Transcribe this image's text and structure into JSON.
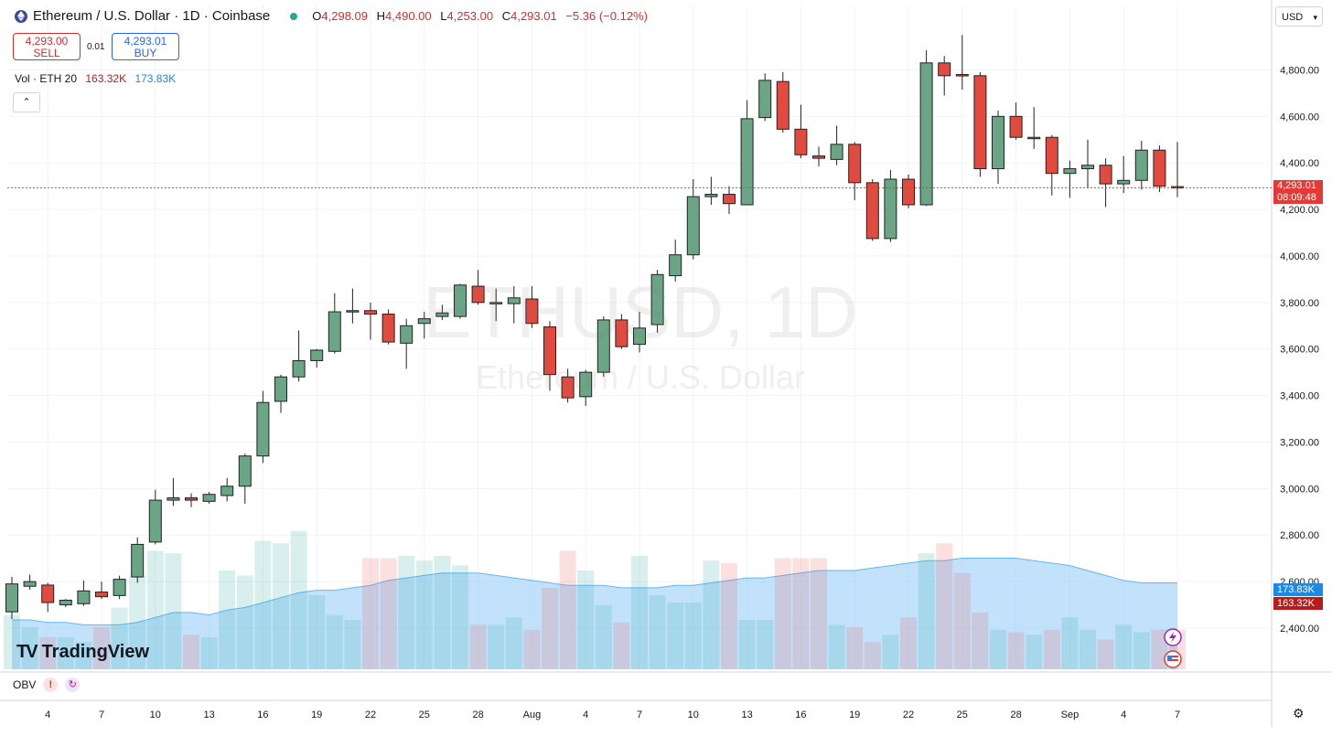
{
  "header": {
    "symbol_title": "Ethereum / U.S. Dollar · 1D · Coinbase",
    "open_label": "O",
    "open": "4,298.09",
    "high_label": "H",
    "high": "4,490.00",
    "low_label": "L",
    "low": "4,253.00",
    "close_label": "C",
    "close": "4,293.01",
    "change": "−5.36 (−0.12%)"
  },
  "trade": {
    "sell_price": "4,293.00",
    "sell_label": "SELL",
    "buy_price": "4,293.01",
    "buy_label": "BUY",
    "spread": "0.01"
  },
  "volume_legend": {
    "label": "Vol · ETH 20",
    "volume": "163.32K",
    "ma": "173.83K"
  },
  "watermark": {
    "symbol": "ETHUSD, 1D",
    "name": "Ethereum / U.S. Dollar"
  },
  "currency": "USD",
  "price_badge": {
    "price": "4,293.01",
    "countdown": "08:09:48"
  },
  "volume_badges": {
    "ma": "173.83K",
    "volume": "163.32K"
  },
  "obv_label": "OBV",
  "brand": "TradingView",
  "colors": {
    "up": "#26a69a",
    "up_body": "#6aa585",
    "down": "#e04a3f",
    "ma_fill": "#90caf9",
    "price_line": "#e53935"
  },
  "chart_data": {
    "type": "candlestick",
    "x_ticks": [
      "4",
      "7",
      "10",
      "13",
      "16",
      "19",
      "22",
      "25",
      "28",
      "Aug",
      "4",
      "7",
      "10",
      "13",
      "16",
      "19",
      "22",
      "25",
      "28",
      "Sep",
      "4",
      "7"
    ],
    "y_ticks": [
      "2,400.00",
      "2,600.00",
      "2,800.00",
      "3,000.00",
      "3,200.00",
      "3,400.00",
      "3,600.00",
      "3,800.00",
      "4,000.00",
      "4,200.00",
      "4,400.00",
      "4,600.00",
      "4,800.00"
    ],
    "ylim": [
      2170,
      4990
    ],
    "current_price": 4293.01,
    "candles": [
      {
        "o": 2470,
        "h": 2620,
        "l": 2440,
        "c": 2590
      },
      {
        "o": 2580,
        "h": 2630,
        "l": 2565,
        "c": 2600
      },
      {
        "o": 2585,
        "h": 2595,
        "l": 2470,
        "c": 2510
      },
      {
        "o": 2500,
        "h": 2525,
        "l": 2490,
        "c": 2520
      },
      {
        "o": 2505,
        "h": 2605,
        "l": 2495,
        "c": 2560
      },
      {
        "o": 2555,
        "h": 2600,
        "l": 2525,
        "c": 2535
      },
      {
        "o": 2540,
        "h": 2625,
        "l": 2525,
        "c": 2610
      },
      {
        "o": 2620,
        "h": 2790,
        "l": 2595,
        "c": 2760
      },
      {
        "o": 2770,
        "h": 2995,
        "l": 2760,
        "c": 2950
      },
      {
        "o": 2950,
        "h": 3045,
        "l": 2925,
        "c": 2960
      },
      {
        "o": 2960,
        "h": 2980,
        "l": 2920,
        "c": 2950
      },
      {
        "o": 2945,
        "h": 2985,
        "l": 2935,
        "c": 2975
      },
      {
        "o": 2970,
        "h": 3045,
        "l": 2945,
        "c": 3010
      },
      {
        "o": 3010,
        "h": 3150,
        "l": 2935,
        "c": 3140
      },
      {
        "o": 3140,
        "h": 3420,
        "l": 3110,
        "c": 3370
      },
      {
        "o": 3375,
        "h": 3490,
        "l": 3325,
        "c": 3480
      },
      {
        "o": 3480,
        "h": 3680,
        "l": 3460,
        "c": 3550
      },
      {
        "o": 3550,
        "h": 3600,
        "l": 3520,
        "c": 3595
      },
      {
        "o": 3590,
        "h": 3840,
        "l": 3580,
        "c": 3760
      },
      {
        "o": 3760,
        "h": 3860,
        "l": 3710,
        "c": 3765
      },
      {
        "o": 3765,
        "h": 3800,
        "l": 3640,
        "c": 3750
      },
      {
        "o": 3750,
        "h": 3770,
        "l": 3620,
        "c": 3630
      },
      {
        "o": 3625,
        "h": 3730,
        "l": 3515,
        "c": 3700
      },
      {
        "o": 3710,
        "h": 3760,
        "l": 3645,
        "c": 3730
      },
      {
        "o": 3740,
        "h": 3790,
        "l": 3725,
        "c": 3755
      },
      {
        "o": 3740,
        "h": 3880,
        "l": 3730,
        "c": 3875
      },
      {
        "o": 3870,
        "h": 3940,
        "l": 3790,
        "c": 3800
      },
      {
        "o": 3795,
        "h": 3860,
        "l": 3720,
        "c": 3800
      },
      {
        "o": 3795,
        "h": 3870,
        "l": 3710,
        "c": 3820
      },
      {
        "o": 3815,
        "h": 3870,
        "l": 3690,
        "c": 3710
      },
      {
        "o": 3695,
        "h": 3720,
        "l": 3420,
        "c": 3490
      },
      {
        "o": 3480,
        "h": 3515,
        "l": 3370,
        "c": 3390
      },
      {
        "o": 3395,
        "h": 3510,
        "l": 3355,
        "c": 3500
      },
      {
        "o": 3500,
        "h": 3740,
        "l": 3480,
        "c": 3725
      },
      {
        "o": 3725,
        "h": 3750,
        "l": 3600,
        "c": 3610
      },
      {
        "o": 3620,
        "h": 3760,
        "l": 3585,
        "c": 3690
      },
      {
        "o": 3705,
        "h": 3940,
        "l": 3670,
        "c": 3920
      },
      {
        "o": 3915,
        "h": 4070,
        "l": 3890,
        "c": 4005
      },
      {
        "o": 4005,
        "h": 4330,
        "l": 3985,
        "c": 4255
      },
      {
        "o": 4255,
        "h": 4340,
        "l": 4220,
        "c": 4265
      },
      {
        "o": 4265,
        "h": 4300,
        "l": 4180,
        "c": 4225
      },
      {
        "o": 4220,
        "h": 4670,
        "l": 4220,
        "c": 4590
      },
      {
        "o": 4595,
        "h": 4785,
        "l": 4580,
        "c": 4755
      },
      {
        "o": 4750,
        "h": 4790,
        "l": 4530,
        "c": 4545
      },
      {
        "o": 4545,
        "h": 4650,
        "l": 4420,
        "c": 4435
      },
      {
        "o": 4430,
        "h": 4470,
        "l": 4385,
        "c": 4420
      },
      {
        "o": 4415,
        "h": 4560,
        "l": 4390,
        "c": 4480
      },
      {
        "o": 4480,
        "h": 4490,
        "l": 4240,
        "c": 4315
      },
      {
        "o": 4315,
        "h": 4330,
        "l": 4065,
        "c": 4075
      },
      {
        "o": 4075,
        "h": 4370,
        "l": 4060,
        "c": 4330
      },
      {
        "o": 4330,
        "h": 4350,
        "l": 4205,
        "c": 4220
      },
      {
        "o": 4220,
        "h": 4885,
        "l": 4215,
        "c": 4830
      },
      {
        "o": 4830,
        "h": 4860,
        "l": 4690,
        "c": 4775
      },
      {
        "o": 4780,
        "h": 4950,
        "l": 4715,
        "c": 4775
      },
      {
        "o": 4775,
        "h": 4790,
        "l": 4340,
        "c": 4375
      },
      {
        "o": 4375,
        "h": 4625,
        "l": 4310,
        "c": 4600
      },
      {
        "o": 4600,
        "h": 4660,
        "l": 4500,
        "c": 4510
      },
      {
        "o": 4510,
        "h": 4640,
        "l": 4460,
        "c": 4510
      },
      {
        "o": 4510,
        "h": 4520,
        "l": 4260,
        "c": 4355
      },
      {
        "o": 4355,
        "h": 4410,
        "l": 4250,
        "c": 4375
      },
      {
        "o": 4375,
        "h": 4500,
        "l": 4290,
        "c": 4390
      },
      {
        "o": 4390,
        "h": 4420,
        "l": 4210,
        "c": 4310
      },
      {
        "o": 4310,
        "h": 4430,
        "l": 4270,
        "c": 4325
      },
      {
        "o": 4325,
        "h": 4495,
        "l": 4285,
        "c": 4455
      },
      {
        "o": 4455,
        "h": 4475,
        "l": 4275,
        "c": 4300
      },
      {
        "o": 4298.09,
        "h": 4490,
        "l": 4253,
        "c": 4293.01
      }
    ],
    "volume": {
      "label": "Vol · ETH 20",
      "bars": [
        22,
        17,
        13,
        13,
        11,
        17,
        25,
        38,
        48,
        47,
        14,
        13,
        40,
        38,
        52,
        51,
        56,
        30,
        22,
        20,
        45,
        45,
        46,
        44,
        46,
        42,
        18,
        18,
        21,
        16,
        33,
        48,
        40,
        26,
        19,
        46,
        30,
        27,
        27,
        44,
        43,
        20,
        20,
        45,
        45,
        45,
        18,
        17,
        11,
        14,
        21,
        47,
        51,
        39,
        23,
        16,
        15,
        14,
        16,
        21,
        16,
        12,
        18,
        15,
        16,
        16
      ],
      "ma": [
        20,
        20,
        19,
        19,
        18,
        18,
        18,
        19,
        21,
        23,
        23,
        22,
        24,
        25,
        27,
        29,
        31,
        32,
        32,
        33,
        34,
        36,
        37,
        38,
        39,
        39,
        39,
        38,
        37,
        36,
        35,
        34,
        34,
        34,
        33,
        33,
        33,
        34,
        34,
        35,
        36,
        37,
        37,
        38,
        39,
        40,
        40,
        40,
        41,
        42,
        43,
        44,
        44,
        45,
        45,
        45,
        45,
        44,
        43,
        42,
        40,
        38,
        36,
        35,
        35,
        35
      ],
      "ymax": 100
    },
    "overlay_label": "OBV"
  }
}
